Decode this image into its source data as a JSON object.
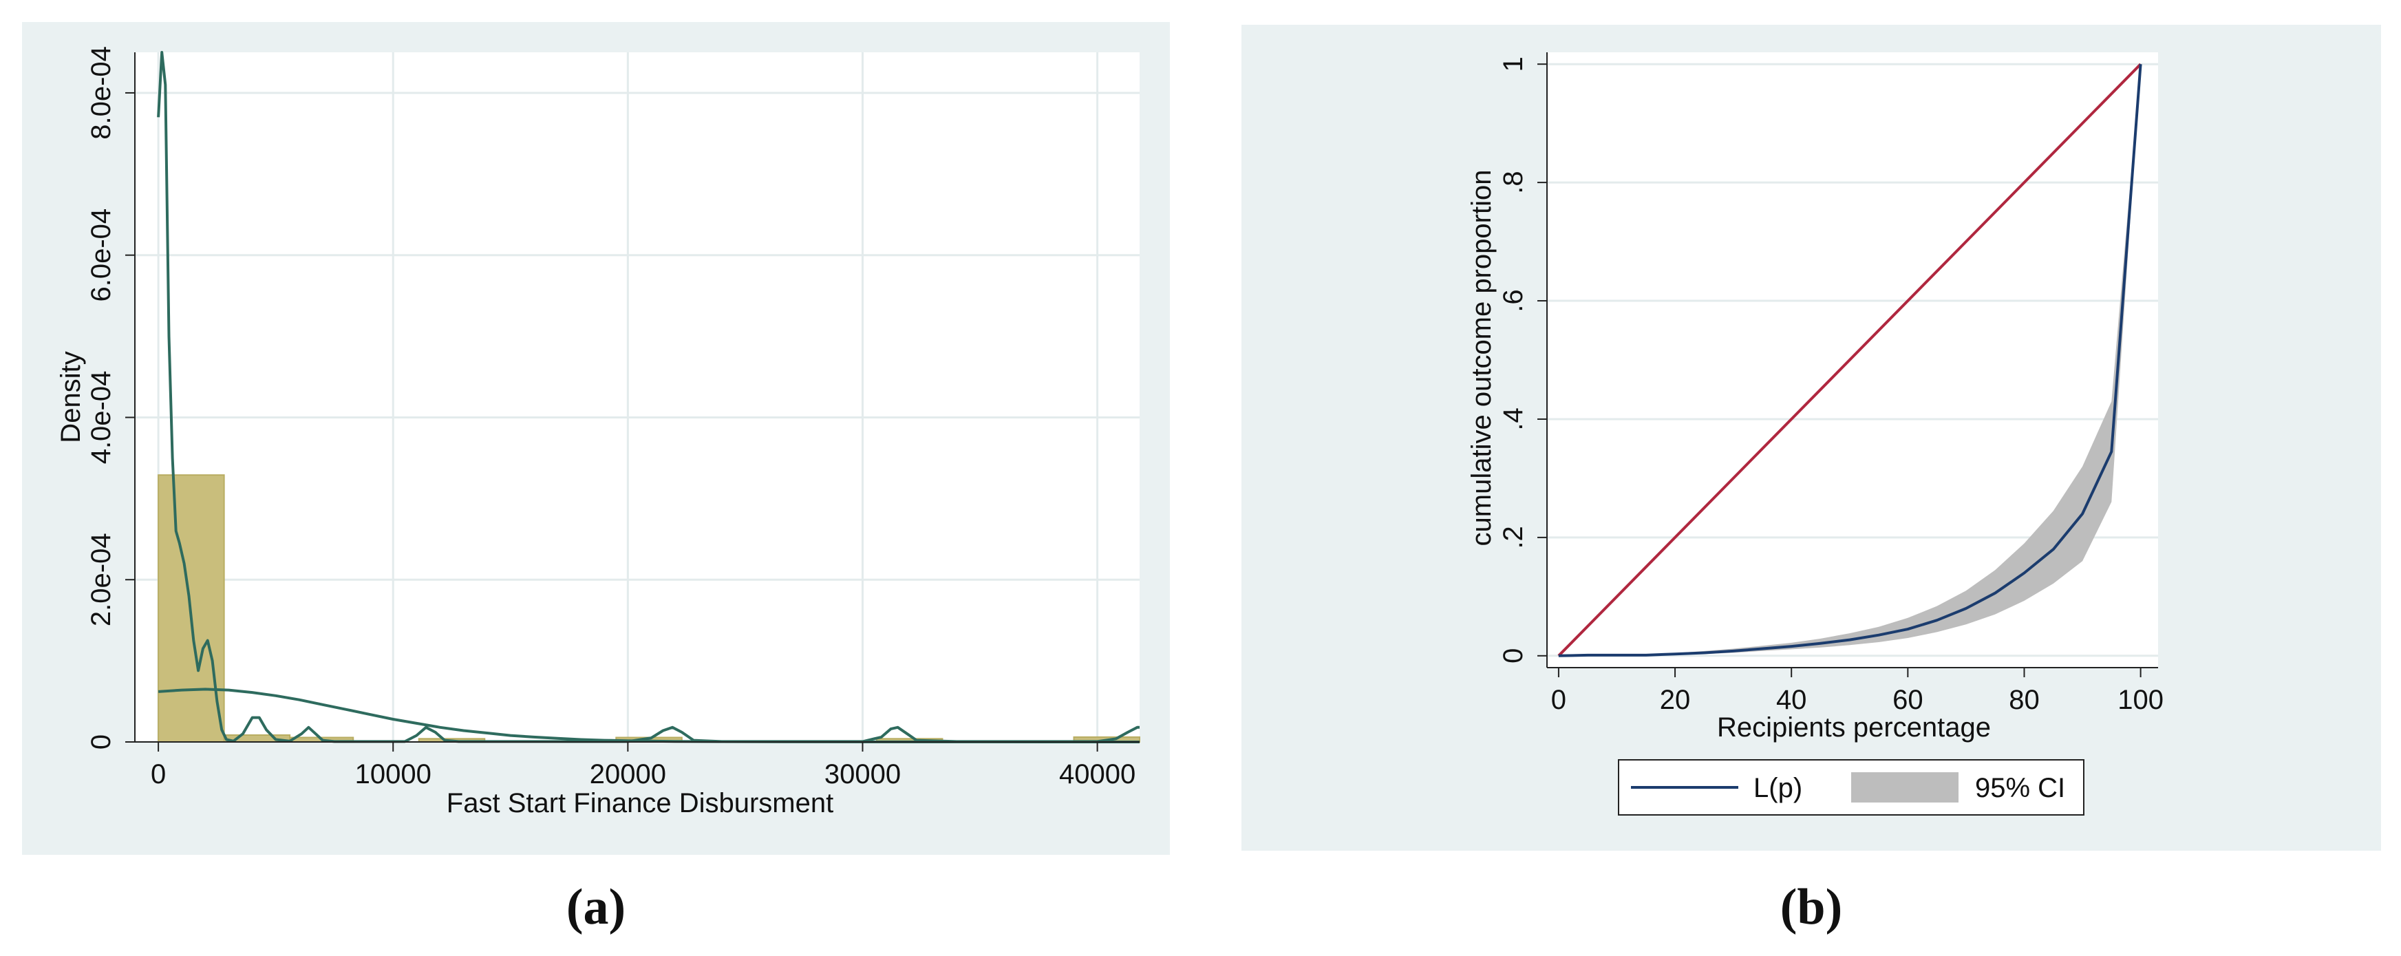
{
  "colors": {
    "panel_background": "#eaf1f2",
    "plot_background": "#ffffff",
    "gridline": "#e3ebec",
    "histogram_fill": "#c9be7c",
    "histogram_edge": "#b9ad62",
    "density_line": "#2e6b5e",
    "equality_line": "#b0273f",
    "lorenz_line": "#1b3c6e",
    "ci_band": "#bdbdbd"
  },
  "chart_data": [
    {
      "panel_label": "(a)",
      "type": "bar",
      "subtype": "histogram_with_density",
      "xlabel": "Fast Start Finance Disbursment",
      "ylabel": "Density",
      "xlim": [
        -1000,
        41800
      ],
      "ylim": [
        0,
        0.00085
      ],
      "x_ticks": [
        0,
        10000,
        20000,
        30000,
        40000
      ],
      "x_tick_labels": [
        "0",
        "10000",
        "20000",
        "30000",
        "40000"
      ],
      "y_ticks": [
        0,
        0.0002,
        0.0004,
        0.0006,
        0.0008
      ],
      "y_tick_labels": [
        "0",
        "2.0e-04",
        "4.0e-04",
        "6.0e-04",
        "8.0e-04"
      ],
      "grid": true,
      "bins": [
        {
          "x0": 0,
          "x1": 2800,
          "density": 0.000329
        },
        {
          "x0": 2800,
          "x1": 5600,
          "density": 8.5e-06
        },
        {
          "x0": 5600,
          "x1": 8300,
          "density": 5.5e-06
        },
        {
          "x0": 11100,
          "x1": 13900,
          "density": 4e-06
        },
        {
          "x0": 19500,
          "x1": 22300,
          "density": 5.5e-06
        },
        {
          "x0": 30600,
          "x1": 33400,
          "density": 4e-06
        },
        {
          "x0": 39000,
          "x1": 41800,
          "density": 6e-06
        }
      ],
      "series": [
        {
          "kind": "kernel_density_narrow",
          "x": [
            0,
            150,
            300,
            450,
            600,
            750,
            900,
            1100,
            1300,
            1500,
            1700,
            1900,
            2100,
            2300,
            2500,
            2700,
            2900,
            3200,
            3600,
            4000,
            4300,
            4600,
            5000,
            5600,
            6100,
            6400,
            6700,
            7000,
            7500,
            9000,
            10500,
            11000,
            11400,
            11800,
            12200,
            12800,
            14000,
            16000,
            18000,
            20000,
            21000,
            21500,
            21900,
            22300,
            22800,
            24000,
            27000,
            30000,
            30800,
            31200,
            31500,
            31900,
            32300,
            34000,
            37000,
            40000,
            40800,
            41300,
            41700,
            41800
          ],
          "y": [
            0.00077,
            0.00085,
            0.00081,
            0.0005,
            0.00035,
            0.00026,
            0.000245,
            0.00022,
            0.00018,
            0.000125,
            8.8e-05,
            0.000115,
            0.000125,
            0.0001,
            5e-05,
            1.5e-05,
            3e-06,
            1e-06,
            1e-05,
            3e-05,
            3e-05,
            1.5e-05,
            3e-06,
            1e-06,
            1e-05,
            1.8e-05,
            1e-05,
            2e-06,
            5e-07,
            5e-07,
            5e-07,
            8e-06,
            1.8e-05,
            1.2e-05,
            2e-06,
            5e-07,
            5e-07,
            5e-07,
            5e-07,
            5e-07,
            5e-06,
            1.4e-05,
            1.8e-05,
            1.2e-05,
            2e-06,
            5e-07,
            5e-07,
            5e-07,
            6e-06,
            1.6e-05,
            1.8e-05,
            1e-05,
            2e-06,
            5e-07,
            5e-07,
            5e-07,
            4e-06,
            1.2e-05,
            1.8e-05,
            1.8e-05
          ]
        },
        {
          "kind": "kernel_density_wide",
          "x": [
            0,
            1000,
            2000,
            3000,
            4000,
            5000,
            6000,
            7000,
            8000,
            9000,
            10000,
            11000,
            12000,
            13000,
            14000,
            15000,
            16000,
            17000,
            18000,
            19000,
            20000,
            21000,
            22000,
            24000,
            27000,
            30000,
            35000,
            41800
          ],
          "y": [
            6.2e-05,
            6.4e-05,
            6.5e-05,
            6.4e-05,
            6.1e-05,
            5.7e-05,
            5.2e-05,
            4.6e-05,
            4e-05,
            3.4e-05,
            2.8e-05,
            2.3e-05,
            1.8e-05,
            1.4e-05,
            1.1e-05,
            8e-06,
            6e-06,
            4.5e-06,
            3e-06,
            2e-06,
            1.5e-06,
            1e-06,
            7e-07,
            4e-07,
            2e-07,
            1e-07,
            5e-08,
            2e-08
          ]
        }
      ]
    },
    {
      "panel_label": "(b)",
      "type": "line",
      "subtype": "lorenz_curve",
      "xlabel": "Recipients percentage",
      "ylabel": "cumulative outcome proportion",
      "xlim": [
        -2,
        103
      ],
      "ylim": [
        -0.02,
        1.02
      ],
      "x_ticks": [
        0,
        20,
        40,
        60,
        80,
        100
      ],
      "x_tick_labels": [
        "0",
        "20",
        "40",
        "60",
        "80",
        "100"
      ],
      "y_ticks": [
        0,
        0.2,
        0.4,
        0.6,
        0.8,
        1
      ],
      "y_tick_labels": [
        "0",
        ".2",
        ".4",
        ".6",
        ".8",
        "1"
      ],
      "grid": true,
      "legend": {
        "placement": "bottom",
        "entries": [
          {
            "label": "L(p)",
            "kind": "line"
          },
          {
            "label": "95% CI",
            "kind": "band"
          }
        ]
      },
      "equality_line": {
        "x": [
          0,
          100
        ],
        "y": [
          0,
          1
        ]
      },
      "series": [
        {
          "name": "L(p)",
          "x": [
            0,
            5,
            10,
            15,
            20,
            25,
            30,
            35,
            40,
            45,
            50,
            55,
            60,
            65,
            70,
            75,
            80,
            85,
            90,
            95,
            100
          ],
          "y": [
            0,
            0.001,
            0.001,
            0.001,
            0.003,
            0.005,
            0.008,
            0.012,
            0.016,
            0.021,
            0.027,
            0.035,
            0.045,
            0.06,
            0.08,
            0.106,
            0.14,
            0.18,
            0.24,
            0.345,
            1.0
          ]
        },
        {
          "name": "95% CI",
          "x": [
            0,
            5,
            10,
            15,
            20,
            25,
            30,
            35,
            40,
            45,
            50,
            55,
            60,
            65,
            70,
            75,
            80,
            85,
            90,
            95,
            100
          ],
          "lower": [
            0,
            0.0005,
            0.0005,
            0.0005,
            0.0015,
            0.003,
            0.005,
            0.008,
            0.011,
            0.014,
            0.018,
            0.023,
            0.03,
            0.04,
            0.053,
            0.07,
            0.093,
            0.122,
            0.16,
            0.26,
            1.0
          ],
          "upper": [
            0,
            0.0015,
            0.0015,
            0.0015,
            0.0045,
            0.008,
            0.012,
            0.017,
            0.022,
            0.029,
            0.038,
            0.049,
            0.064,
            0.084,
            0.11,
            0.145,
            0.19,
            0.245,
            0.32,
            0.43,
            1.0
          ]
        }
      ]
    }
  ]
}
